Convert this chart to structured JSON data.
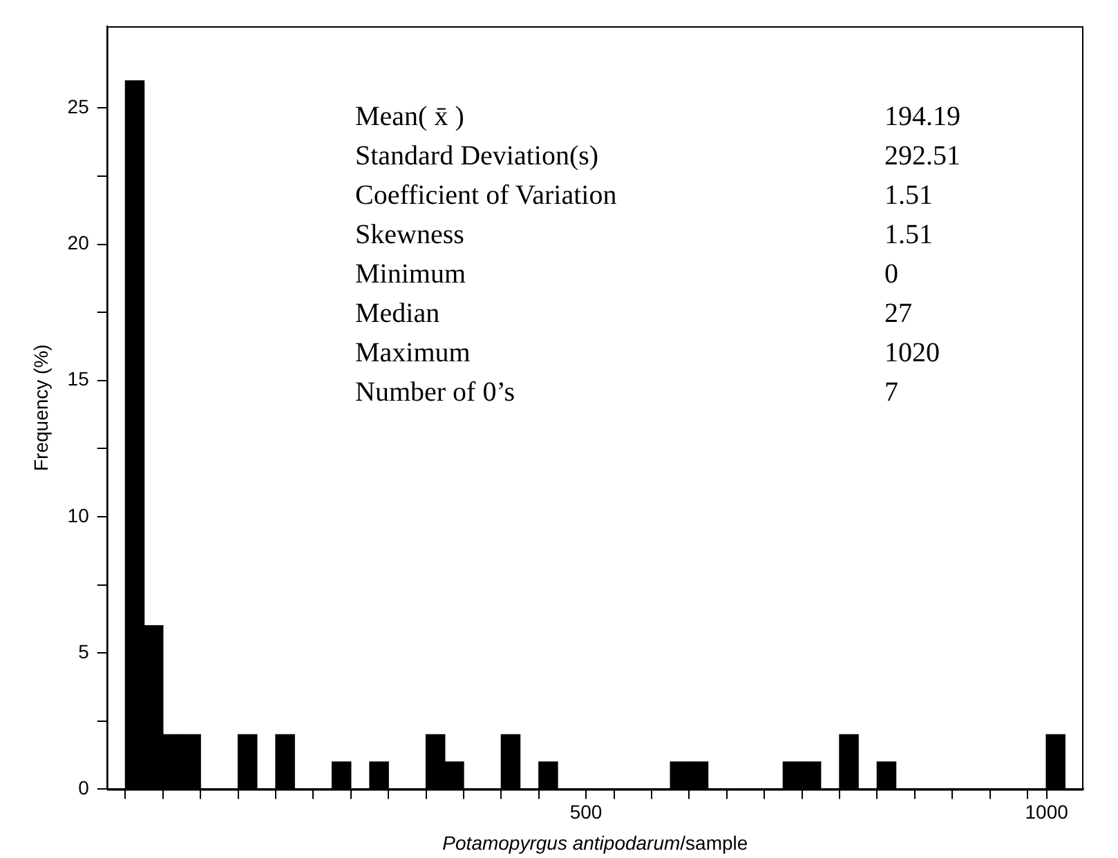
{
  "chart_data": {
    "type": "histogram",
    "xlabel": "Potamopyrgus antipodarum/sample",
    "ylabel": "Frequency (%)",
    "bins": [
      0,
      20.4,
      40.8,
      61.2,
      81.6,
      102,
      122.4,
      142.8,
      163.2,
      183.6,
      204,
      224.4,
      244.8,
      265.2,
      285.6,
      306,
      326.4,
      346.8,
      367.2,
      387.6,
      408,
      428.4,
      448.8,
      469.2,
      489.6,
      510,
      530.4,
      550.8,
      571.2,
      591.6,
      612,
      632.4,
      652.8,
      673.2,
      693.6,
      714,
      734.4,
      754.8,
      775.2,
      795.6,
      816,
      836.4,
      856.8,
      877.2,
      897.6,
      918,
      938.4,
      958.8,
      979.2,
      999.6,
      1020
    ],
    "values": [
      26,
      6,
      2,
      2,
      0,
      0,
      2,
      0,
      2,
      0,
      0,
      1,
      0,
      1,
      0,
      0,
      2,
      1,
      0,
      0,
      2,
      0,
      1,
      0,
      0,
      0,
      0,
      0,
      0,
      1,
      1,
      0,
      0,
      0,
      0,
      1,
      1,
      0,
      2,
      0,
      1,
      0,
      0,
      0,
      0,
      0,
      0,
      0,
      0,
      2
    ],
    "color": "#000000",
    "xlim": [
      -20,
      1040
    ],
    "xticks": [
      {
        "value": 0,
        "label": null
      },
      {
        "value": 40.8,
        "label": null
      },
      {
        "value": 81.6,
        "label": null
      },
      {
        "value": 122.4,
        "label": null
      },
      {
        "value": 163.2,
        "label": null
      },
      {
        "value": 204,
        "label": null
      },
      {
        "value": 244.8,
        "label": null
      },
      {
        "value": 285.6,
        "label": null
      },
      {
        "value": 326.4,
        "label": null
      },
      {
        "value": 367.2,
        "label": null
      },
      {
        "value": 408,
        "label": null
      },
      {
        "value": 448.8,
        "label": null
      },
      500,
      {
        "value": 530.4,
        "label": null
      },
      {
        "value": 571.2,
        "label": null
      },
      {
        "value": 612,
        "label": null
      },
      {
        "value": 652.8,
        "label": null
      },
      {
        "value": 693.6,
        "label": null
      },
      {
        "value": 734.4,
        "label": null
      },
      {
        "value": 775.2,
        "label": null
      },
      {
        "value": 816,
        "label": null
      },
      {
        "value": 856.8,
        "label": null
      },
      {
        "value": 897.6,
        "label": null
      },
      {
        "value": 938.4,
        "label": null
      },
      {
        "value": 979.2,
        "label": null
      },
      1000
    ],
    "ylim": [
      0,
      28
    ],
    "yticks": [
      0,
      {
        "value": 2.5,
        "label": null
      },
      5,
      {
        "value": 7.5,
        "label": null
      },
      10,
      {
        "value": 12.5,
        "label": null
      },
      15,
      {
        "value": 17.5,
        "label": null
      },
      20,
      {
        "value": 22.5,
        "label": null
      },
      25
    ],
    "annotations": [
      "Mean( x̄ )",
      "194.19",
      "Standard Deviation(s)",
      "292.51",
      "Coefficient of Variation",
      "1.51",
      "Skewness",
      "1.51",
      "Minimum",
      "0",
      "Median",
      "27",
      "Maximum",
      "1020",
      "Number of 0’s",
      "7"
    ]
  }
}
